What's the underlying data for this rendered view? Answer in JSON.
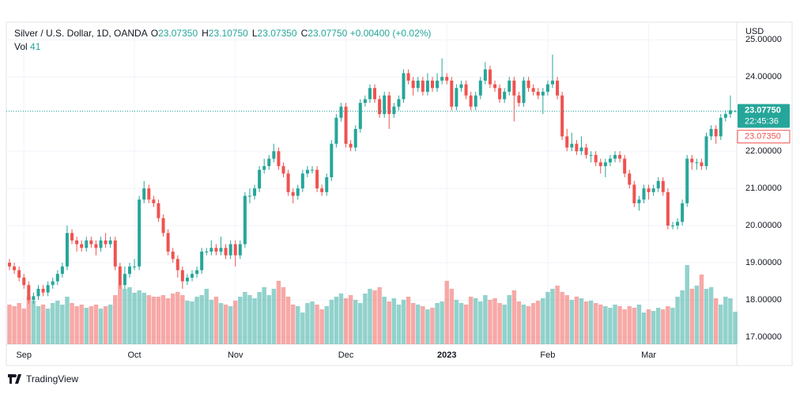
{
  "chart_data": {
    "type": "candlestick",
    "title": "Silver / U.S. Dollar, 1D, OANDA",
    "header_values": [
      {
        "key": "O",
        "value": 23.0735,
        "label": "23.07350"
      },
      {
        "key": "H",
        "value": 23.1075,
        "label": "23.10750"
      },
      {
        "key": "L",
        "value": 23.0735,
        "label": "23.07350"
      },
      {
        "key": "C",
        "value": 23.0775,
        "label": "23.07750"
      }
    ],
    "change": "+0.00400 (+0.02%)",
    "volume_label": "Vol",
    "currency": "USD",
    "countdown": "22:45:36",
    "last_price": {
      "value": 23.0775,
      "label": "23.07750"
    },
    "open_price": {
      "value": 23.0735,
      "label": "23.07350"
    },
    "brand": "TradingView",
    "up_color": "#26a69a",
    "down_color": "#ef5350",
    "volume_up_color": "rgba(38,166,154,0.5)",
    "volume_down_color": "rgba(239,83,80,0.5)",
    "grid": true,
    "ylim": [
      16.81,
      25.43
    ],
    "yticks": [
      {
        "value": 17,
        "label": "17.00000"
      },
      {
        "value": 18,
        "label": "18.00000"
      },
      {
        "value": 19,
        "label": "19.00000"
      },
      {
        "value": 20,
        "label": "20.00000"
      },
      {
        "value": 21,
        "label": "21.00000"
      },
      {
        "value": 22,
        "label": "22.00000"
      },
      {
        "value": 24,
        "label": "24.00000"
      },
      {
        "value": 25,
        "label": "25.00000"
      }
    ],
    "categories": [
      null,
      null,
      null,
      "Sep",
      null,
      null,
      null,
      null,
      null,
      null,
      null,
      null,
      null,
      null,
      null,
      null,
      null,
      null,
      null,
      null,
      null,
      null,
      null,
      null,
      null,
      null,
      "Oct",
      null,
      null,
      null,
      null,
      null,
      null,
      null,
      null,
      null,
      null,
      null,
      null,
      null,
      null,
      null,
      null,
      null,
      null,
      null,
      null,
      "Nov",
      null,
      null,
      null,
      null,
      null,
      null,
      null,
      null,
      null,
      null,
      null,
      null,
      null,
      null,
      null,
      null,
      null,
      null,
      null,
      null,
      null,
      null,
      "Dec",
      null,
      null,
      null,
      null,
      null,
      null,
      null,
      null,
      null,
      null,
      null,
      null,
      null,
      null,
      null,
      null,
      null,
      null,
      null,
      null,
      "2023",
      null,
      null,
      null,
      null,
      null,
      null,
      null,
      null,
      null,
      null,
      null,
      null,
      null,
      null,
      null,
      null,
      null,
      null,
      null,
      null,
      "Feb",
      null,
      null,
      null,
      null,
      null,
      null,
      null,
      null,
      null,
      null,
      null,
      null,
      null,
      null,
      null,
      null,
      null,
      null,
      null,
      null,
      "Mar",
      null,
      null,
      null,
      null,
      null,
      null,
      null,
      null,
      null,
      null,
      null,
      null,
      null,
      null,
      null,
      null,
      null,
      null
    ],
    "open": [
      19.0,
      18.9,
      18.8,
      18.6,
      18.4,
      18.0,
      18.1,
      18.3,
      18.2,
      18.4,
      18.5,
      18.7,
      18.9,
      19.8,
      19.6,
      19.5,
      19.4,
      19.6,
      19.5,
      19.4,
      19.6,
      19.5,
      19.6,
      18.9,
      18.4,
      18.7,
      18.9,
      18.9,
      20.7,
      21.0,
      20.7,
      20.6,
      20.2,
      19.8,
      19.3,
      19.1,
      18.8,
      18.5,
      18.6,
      18.7,
      18.8,
      19.3,
      19.3,
      19.4,
      19.3,
      19.4,
      19.2,
      19.5,
      19.2,
      19.5,
      20.8,
      20.8,
      21.0,
      21.5,
      21.6,
      21.8,
      22.0,
      21.6,
      21.4,
      20.9,
      20.8,
      21.0,
      21.4,
      21.5,
      21.5,
      21.0,
      20.9,
      21.3,
      22.2,
      22.9,
      23.2,
      22.2,
      22.1,
      22.6,
      23.3,
      23.4,
      23.7,
      23.4,
      23.0,
      23.5,
      23.0,
      23.2,
      23.4,
      24.1,
      23.9,
      23.7,
      23.9,
      23.6,
      23.9,
      23.7,
      23.9,
      24.0,
      23.9,
      23.2,
      23.7,
      23.8,
      23.5,
      23.2,
      23.5,
      23.9,
      24.2,
      23.8,
      23.7,
      23.4,
      23.6,
      23.9,
      23.5,
      23.3,
      23.9,
      23.7,
      23.6,
      23.5,
      23.6,
      23.8,
      23.9,
      23.5,
      22.4,
      22.1,
      22.2,
      22.0,
      22.1,
      21.9,
      21.9,
      21.7,
      21.6,
      21.7,
      21.8,
      21.9,
      21.8,
      21.4,
      21.1,
      20.6,
      20.7,
      21.0,
      20.9,
      21.0,
      21.2,
      20.9,
      20.0,
      20.0,
      20.1,
      20.6,
      21.8,
      21.7,
      21.7,
      21.6,
      22.4,
      22.6,
      22.4,
      22.9,
      23.0,
      23.0735
    ],
    "high": [
      19.1,
      19.0,
      18.9,
      18.7,
      18.5,
      18.2,
      18.4,
      18.4,
      18.5,
      18.6,
      18.8,
      19.0,
      20.0,
      19.9,
      19.7,
      19.6,
      19.7,
      19.7,
      19.6,
      19.7,
      19.8,
      19.7,
      19.7,
      19.0,
      18.9,
      19.0,
      19.1,
      20.8,
      21.2,
      21.1,
      20.8,
      20.7,
      20.3,
      19.9,
      19.4,
      19.2,
      18.9,
      18.7,
      18.8,
      18.9,
      19.4,
      19.4,
      19.6,
      19.5,
      19.7,
      19.5,
      19.6,
      19.6,
      19.6,
      20.9,
      21.0,
      21.1,
      21.6,
      21.8,
      21.9,
      22.2,
      22.1,
      21.7,
      21.5,
      21.0,
      21.1,
      21.5,
      21.6,
      21.6,
      21.6,
      21.1,
      21.4,
      22.3,
      23.0,
      23.3,
      23.3,
      22.3,
      22.7,
      23.4,
      23.5,
      23.8,
      23.8,
      23.5,
      23.6,
      23.6,
      23.3,
      23.5,
      24.2,
      24.2,
      24.0,
      24.0,
      24.0,
      24.1,
      24.0,
      24.1,
      24.5,
      24.1,
      24.0,
      23.8,
      23.9,
      23.9,
      23.6,
      23.6,
      24.0,
      24.4,
      24.3,
      23.9,
      23.8,
      23.7,
      24.0,
      24.0,
      23.6,
      24.0,
      24.0,
      23.8,
      23.7,
      23.7,
      23.9,
      24.6,
      24.0,
      23.6,
      22.6,
      22.5,
      22.3,
      22.4,
      22.2,
      22.0,
      22.0,
      21.8,
      21.8,
      21.9,
      22.0,
      22.0,
      21.9,
      21.5,
      21.2,
      20.8,
      21.1,
      21.1,
      21.1,
      21.3,
      21.3,
      21.0,
      20.1,
      20.2,
      20.7,
      21.9,
      21.9,
      21.8,
      21.8,
      22.5,
      22.7,
      22.7,
      23.0,
      23.1,
      23.5,
      23.1075
    ],
    "low": [
      18.8,
      18.7,
      18.5,
      18.3,
      17.9,
      17.9,
      18.0,
      18.1,
      18.1,
      18.3,
      18.4,
      18.6,
      18.8,
      19.5,
      19.3,
      19.3,
      19.3,
      19.4,
      19.2,
      19.3,
      19.4,
      19.4,
      18.8,
      18.3,
      18.3,
      18.6,
      18.8,
      18.8,
      20.6,
      20.6,
      20.5,
      20.1,
      19.7,
      19.2,
      19.0,
      18.6,
      18.3,
      18.4,
      18.5,
      18.6,
      18.7,
      19.2,
      19.2,
      19.2,
      19.2,
      19.1,
      19.1,
      18.9,
      19.1,
      19.4,
      20.6,
      20.7,
      20.9,
      21.4,
      21.5,
      21.7,
      21.5,
      21.3,
      20.8,
      20.6,
      20.7,
      20.9,
      21.3,
      21.4,
      20.9,
      20.8,
      20.8,
      21.2,
      22.1,
      22.8,
      22.1,
      22.0,
      22.0,
      22.5,
      23.2,
      23.3,
      23.3,
      22.9,
      22.9,
      22.6,
      22.9,
      23.1,
      23.3,
      23.8,
      23.5,
      23.6,
      23.5,
      23.5,
      23.6,
      23.6,
      23.8,
      23.8,
      23.1,
      23.1,
      23.6,
      23.4,
      23.1,
      23.1,
      23.4,
      23.8,
      23.7,
      23.6,
      23.3,
      23.3,
      23.5,
      22.8,
      23.2,
      23.2,
      23.6,
      23.5,
      23.4,
      23.0,
      23.5,
      23.7,
      23.4,
      22.3,
      22.0,
      22.0,
      21.9,
      21.9,
      21.8,
      21.7,
      21.6,
      21.4,
      21.3,
      21.6,
      21.7,
      21.7,
      21.3,
      21.0,
      20.5,
      20.4,
      20.6,
      20.7,
      20.8,
      20.9,
      20.8,
      19.9,
      19.9,
      19.9,
      20.0,
      20.5,
      21.5,
      21.5,
      21.5,
      21.5,
      22.3,
      22.2,
      22.3,
      22.8,
      22.9,
      23.0735
    ],
    "close": [
      18.9,
      18.8,
      18.6,
      18.4,
      18.0,
      18.1,
      18.3,
      18.2,
      18.4,
      18.5,
      18.7,
      18.9,
      19.8,
      19.6,
      19.5,
      19.4,
      19.6,
      19.5,
      19.4,
      19.6,
      19.5,
      19.6,
      18.9,
      18.4,
      18.7,
      18.9,
      18.9,
      20.7,
      21.0,
      20.7,
      20.6,
      20.2,
      19.8,
      19.3,
      19.1,
      18.8,
      18.5,
      18.6,
      18.7,
      18.8,
      19.3,
      19.3,
      19.4,
      19.3,
      19.4,
      19.2,
      19.5,
      19.2,
      19.5,
      20.8,
      20.8,
      21.0,
      21.5,
      21.6,
      21.8,
      22.0,
      21.6,
      21.4,
      20.9,
      20.8,
      21.0,
      21.4,
      21.5,
      21.5,
      21.0,
      20.9,
      21.3,
      22.2,
      22.9,
      23.2,
      22.2,
      22.1,
      22.6,
      23.3,
      23.4,
      23.7,
      23.4,
      23.0,
      23.5,
      23.0,
      23.2,
      23.4,
      24.1,
      23.9,
      23.7,
      23.9,
      23.6,
      23.9,
      23.7,
      23.9,
      24.0,
      23.9,
      23.2,
      23.7,
      23.8,
      23.5,
      23.2,
      23.5,
      23.9,
      24.2,
      23.8,
      23.7,
      23.4,
      23.6,
      23.9,
      23.5,
      23.3,
      23.9,
      23.7,
      23.6,
      23.5,
      23.6,
      23.8,
      23.9,
      23.5,
      22.4,
      22.1,
      22.2,
      22.0,
      22.1,
      21.9,
      21.9,
      21.7,
      21.6,
      21.7,
      21.8,
      21.9,
      21.8,
      21.4,
      21.1,
      20.6,
      20.7,
      21.0,
      20.9,
      21.0,
      21.2,
      20.9,
      20.0,
      20.0,
      20.1,
      20.6,
      21.8,
      21.7,
      21.7,
      21.6,
      22.4,
      22.6,
      22.4,
      22.9,
      23.0,
      23.1,
      23.0775
    ],
    "volume": [
      50,
      48,
      52,
      45,
      60,
      55,
      48,
      50,
      45,
      52,
      55,
      50,
      60,
      52,
      48,
      50,
      46,
      48,
      50,
      45,
      48,
      50,
      62,
      75,
      70,
      72,
      65,
      68,
      65,
      62,
      60,
      60,
      62,
      58,
      64,
      66,
      62,
      55,
      54,
      60,
      62,
      70,
      56,
      60,
      52,
      50,
      48,
      55,
      60,
      66,
      62,
      58,
      66,
      72,
      62,
      70,
      80,
      72,
      60,
      50,
      48,
      40,
      52,
      54,
      50,
      44,
      48,
      56,
      60,
      64,
      58,
      62,
      56,
      52,
      64,
      70,
      68,
      72,
      60,
      54,
      58,
      50,
      56,
      60,
      52,
      50,
      48,
      44,
      46,
      52,
      54,
      80,
      70,
      56,
      52,
      50,
      60,
      58,
      54,
      62,
      56,
      58,
      52,
      50,
      62,
      68,
      54,
      50,
      48,
      52,
      55,
      58,
      66,
      70,
      74,
      66,
      62,
      56,
      60,
      58,
      54,
      55,
      52,
      50,
      48,
      46,
      50,
      48,
      44,
      48,
      46,
      50,
      40,
      44,
      42,
      46,
      44,
      48,
      46,
      60,
      68,
      100,
      70,
      74,
      88,
      70,
      72,
      58,
      50,
      60,
      58,
      41
    ]
  }
}
